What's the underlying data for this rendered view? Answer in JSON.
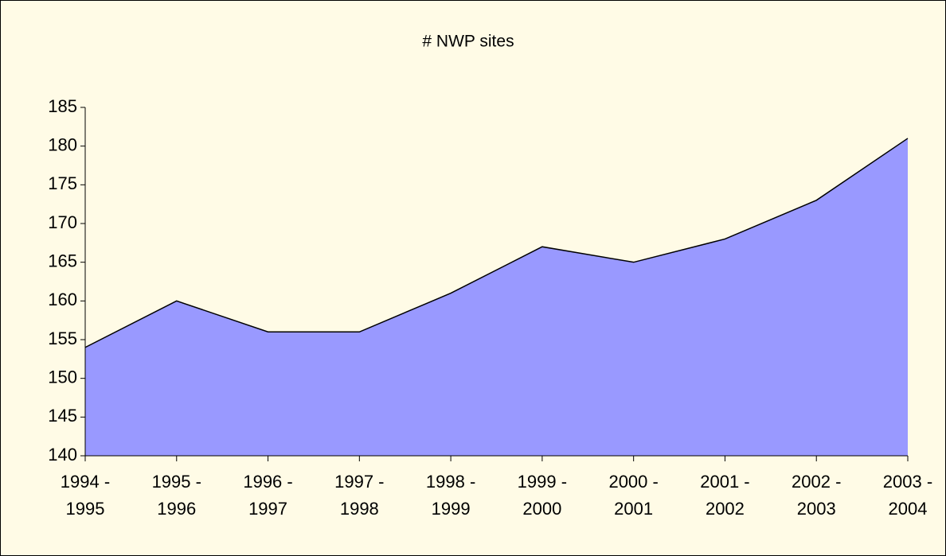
{
  "chart_data": {
    "type": "area",
    "title": "# NWP sites",
    "categories": [
      "1994 - 1995",
      "1995 - 1996",
      "1996 - 1997",
      "1997 - 1998",
      "1998 - 1999",
      "1999 - 2000",
      "2000 - 2001",
      "2001 - 2002",
      "2002 - 2003",
      "2003 - 2004"
    ],
    "values": [
      154,
      160,
      156,
      156,
      161,
      167,
      165,
      168,
      173,
      181
    ],
    "color": "#9999ff",
    "ylim": [
      140,
      185
    ],
    "yticks": [
      140,
      145,
      150,
      155,
      160,
      165,
      170,
      175,
      180,
      185
    ],
    "grid": false
  }
}
